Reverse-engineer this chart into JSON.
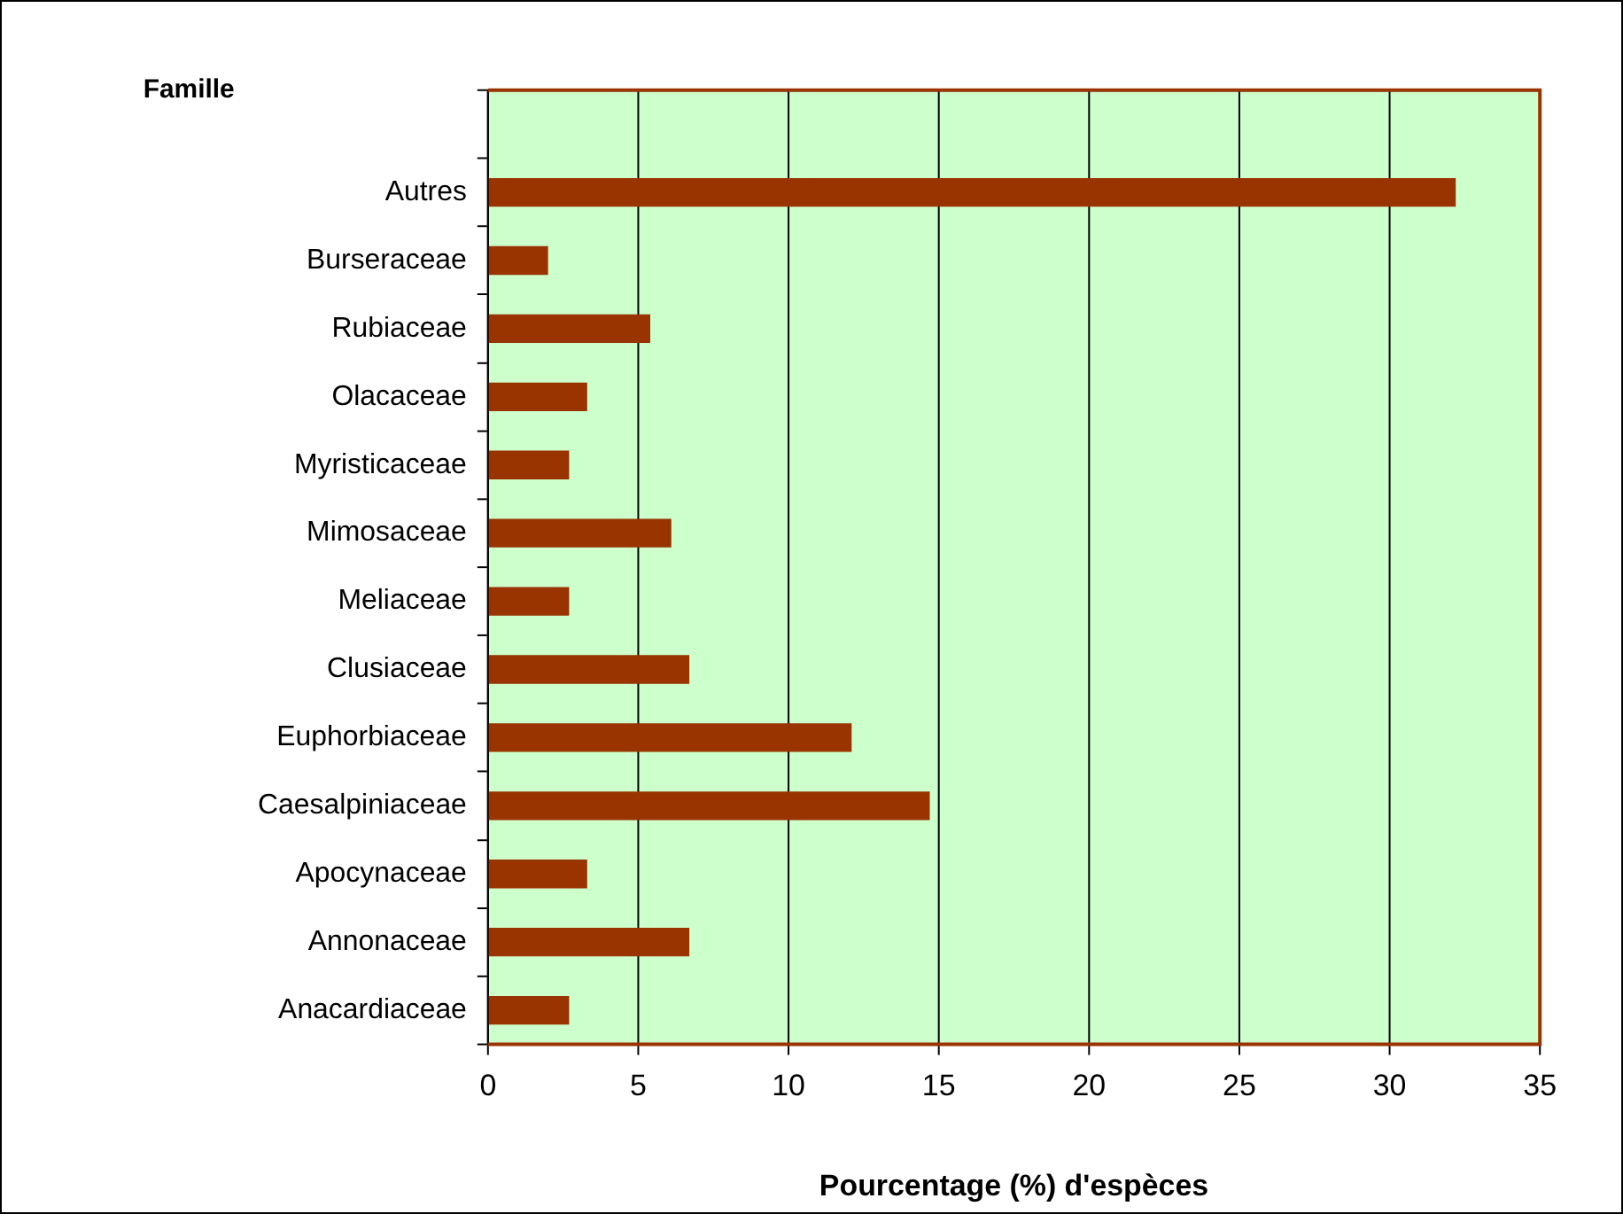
{
  "chart_data": {
    "type": "bar",
    "orientation": "horizontal",
    "ylabel": "Famille",
    "xlabel": "Pourcentage (%) d'espèces",
    "categories": [
      null,
      "Autres",
      "Burseraceae",
      "Rubiaceae",
      "Olacaceae",
      "Myristicaceae",
      "Mimosaceae",
      "Meliaceae",
      "Clusiaceae",
      "Euphorbiaceae",
      "Caesalpiniaceae",
      "Apocynaceae",
      "Annonaceae",
      "Anacardiaceae"
    ],
    "values": [
      null,
      32.2,
      2.0,
      5.4,
      3.3,
      2.7,
      6.1,
      2.7,
      6.7,
      12.1,
      14.7,
      3.3,
      6.7,
      2.7
    ],
    "color": "#993300",
    "xlim": [
      0,
      35
    ],
    "xticks": [
      0,
      5,
      10,
      15,
      20,
      25,
      30,
      35
    ],
    "grid": "x",
    "legend": false
  }
}
